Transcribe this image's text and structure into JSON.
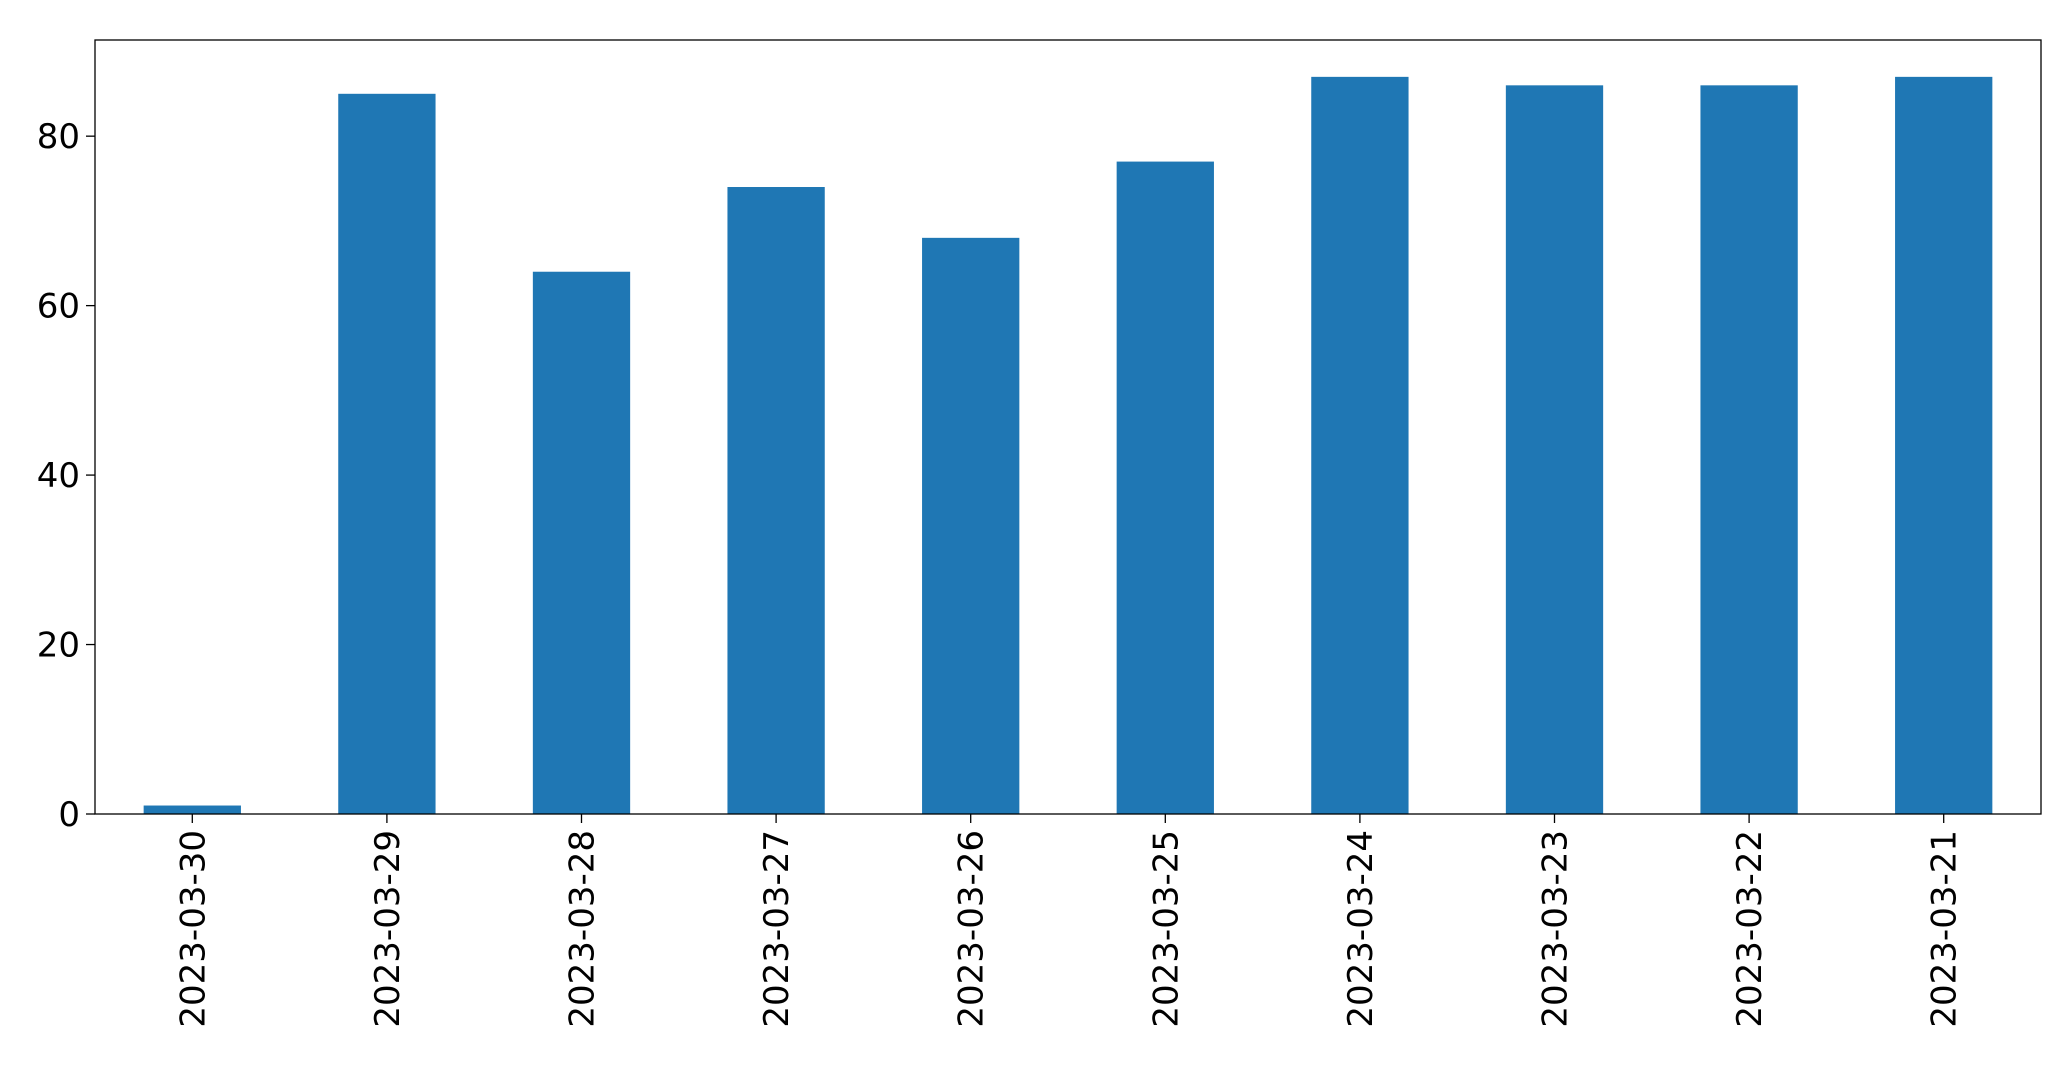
{
  "chart_data": {
    "type": "bar",
    "title": "",
    "xlabel": "",
    "ylabel": "",
    "categories": [
      "2023-03-30",
      "2023-03-29",
      "2023-03-28",
      "2023-03-27",
      "2023-03-26",
      "2023-03-25",
      "2023-03-24",
      "2023-03-23",
      "2023-03-22",
      "2023-03-21"
    ],
    "values": [
      1,
      85,
      64,
      74,
      68,
      77,
      87,
      86,
      86,
      87
    ],
    "ylim": [
      0,
      91.35
    ],
    "yticks": [
      0,
      20,
      40,
      60,
      80
    ],
    "grid": false,
    "legend": "none",
    "colors": {
      "bar": "#1f77b4",
      "axis": "#000000",
      "background": "#ffffff"
    }
  }
}
